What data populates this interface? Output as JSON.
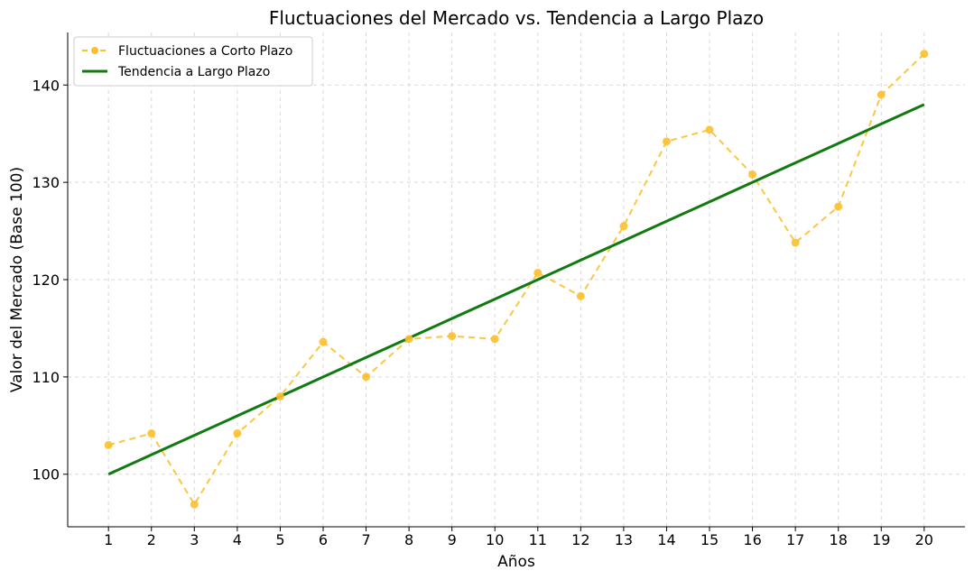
{
  "chart_data": {
    "type": "line",
    "title": "Fluctuaciones del Mercado vs. Tendencia a Largo Plazo",
    "xlabel": "Años",
    "ylabel": "Valor del Mercado (Base 100)",
    "x": [
      1,
      2,
      3,
      4,
      5,
      6,
      7,
      8,
      9,
      10,
      11,
      12,
      13,
      14,
      15,
      16,
      17,
      18,
      19,
      20
    ],
    "xlim": [
      0.05,
      20.95
    ],
    "ylim": [
      94.6,
      145.4
    ],
    "yticks": [
      100,
      110,
      120,
      130,
      140
    ],
    "grid": true,
    "legend_position": "top-left",
    "series": [
      {
        "name": "Fluctuaciones a Corto Plazo",
        "style": "dashed-markers",
        "color": "#FBC02D",
        "values": [
          103.0,
          104.2,
          96.9,
          104.2,
          108.0,
          113.6,
          110.0,
          113.9,
          114.2,
          113.9,
          120.7,
          118.3,
          125.5,
          134.2,
          135.4,
          130.8,
          123.8,
          127.5,
          139.0,
          143.2
        ]
      },
      {
        "name": "Tendencia a Largo Plazo",
        "style": "solid",
        "color": "#107A10",
        "values": [
          100,
          102,
          104,
          106,
          108,
          110,
          112,
          114,
          116,
          118,
          120,
          122,
          124,
          126,
          128,
          130,
          132,
          134,
          136,
          138
        ]
      }
    ]
  }
}
